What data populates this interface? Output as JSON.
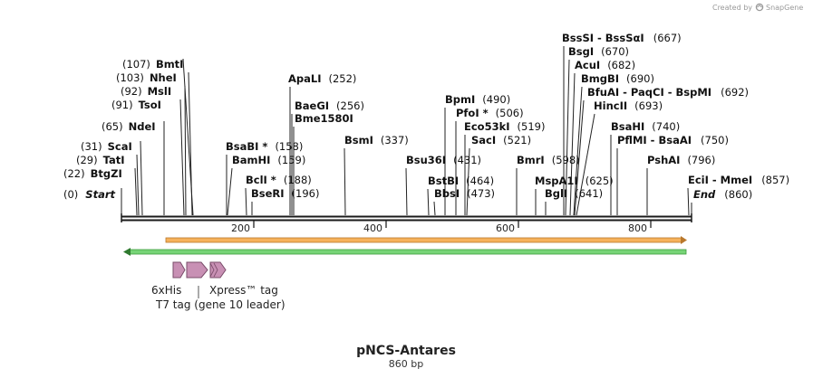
{
  "map": {
    "title": "pNCS-Antares",
    "length_label": "860 bp",
    "length": 860,
    "credit_text": "Created by",
    "credit_brand": "SnapGene"
  },
  "ruler": {
    "ticks": [
      "200",
      "400",
      "600",
      "800"
    ]
  },
  "colors": {
    "backbone": "#1a1a1a",
    "orange_feature": "#f0a040",
    "green_feature": "#5cc45c",
    "tag_fill": "#c890b4",
    "tag_stroke": "#7a4c6a"
  },
  "sites": [
    {
      "name": "Start",
      "pos": "(0)",
      "italic": true
    },
    {
      "name": "BtgZI",
      "pos": "(22)"
    },
    {
      "name": "TatI",
      "pos": "(29)"
    },
    {
      "name": "ScaI",
      "pos": "(31)"
    },
    {
      "name": "NdeI",
      "pos": "(65)"
    },
    {
      "name": "TsoI",
      "pos": "(91)"
    },
    {
      "name": "MslI",
      "pos": "(92)"
    },
    {
      "name": "NheI",
      "pos": "(103)"
    },
    {
      "name": "BmtI",
      "pos": "(107)"
    },
    {
      "name": "BsaBI *",
      "pos": "(158)"
    },
    {
      "name": "BamHI",
      "pos": "(159)"
    },
    {
      "name": "BclI *",
      "pos": "(188)"
    },
    {
      "name": "BseRI",
      "pos": "(196)"
    },
    {
      "name": "ApaLI",
      "pos": "(252)"
    },
    {
      "name": "BaeGI",
      "pos": "(256)"
    },
    {
      "name": "Bme1580I",
      "pos": ""
    },
    {
      "name": "BsmI",
      "pos": "(337)"
    },
    {
      "name": "Bsu36I",
      "pos": "(431)"
    },
    {
      "name": "BstBI",
      "pos": "(464)"
    },
    {
      "name": "BbsI",
      "pos": "(473)"
    },
    {
      "name": "BpmI",
      "pos": "(490)"
    },
    {
      "name": "PfoI *",
      "pos": "(506)"
    },
    {
      "name": "Eco53kI",
      "pos": "(519)"
    },
    {
      "name": "SacI",
      "pos": "(521)"
    },
    {
      "name": "BmrI",
      "pos": "(598)"
    },
    {
      "name": "MspA1I",
      "pos": "(625)"
    },
    {
      "name": "BglI",
      "pos": "(641)"
    },
    {
      "name": "BssSI - BssSαI",
      "pos": "(667)"
    },
    {
      "name": "BsgI",
      "pos": "(670)"
    },
    {
      "name": "AcuI",
      "pos": "(682)"
    },
    {
      "name": "BmgBI",
      "pos": "(690)"
    },
    {
      "name": "BfuAI - PaqCI - BspMI",
      "pos": "(692)"
    },
    {
      "name": "HincII",
      "pos": "(693)"
    },
    {
      "name": "BsaHI",
      "pos": "(740)"
    },
    {
      "name": "PflMI - BsaAI",
      "pos": "(750)"
    },
    {
      "name": "PshAI",
      "pos": "(796)"
    },
    {
      "name": "EciI - MmeI",
      "pos": "(857)"
    },
    {
      "name": "End",
      "pos": "(860)",
      "italic": true
    }
  ],
  "features": {
    "his_tag": "6xHis",
    "xpress_tag": "Xpress™ tag",
    "t7_tag": "T7 tag (gene 10 leader)"
  }
}
